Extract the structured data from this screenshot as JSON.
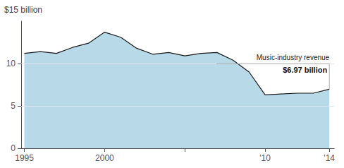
{
  "chart_data": {
    "type": "area",
    "x": [
      1995,
      1996,
      1997,
      1998,
      1999,
      2000,
      2001,
      2002,
      2003,
      2004,
      2005,
      2006,
      2007,
      2008,
      2009,
      2010,
      2011,
      2012,
      2013,
      2014
    ],
    "values": [
      11.2,
      11.4,
      11.2,
      11.9,
      12.4,
      13.7,
      13.1,
      11.8,
      11.1,
      11.3,
      10.9,
      11.2,
      11.3,
      10.4,
      9.0,
      6.3,
      6.4,
      6.5,
      6.5,
      6.97
    ],
    "color": "#b8d9e8",
    "ylabel": "$15 billion",
    "xlim": [
      1994.8,
      2014.3
    ],
    "ylim": [
      0,
      15
    ],
    "xticks": [
      1995,
      2000,
      {
        "value": 2005,
        "label": null
      },
      {
        "value": 2010,
        "label": "'10"
      },
      {
        "value": 2014,
        "label": "'14"
      }
    ],
    "yticks": [
      0,
      5,
      10
    ],
    "grid": true,
    "annotations": [
      {
        "text": "Music-industry revenue"
      },
      {
        "text": "$6.97 billion",
        "x": 2014,
        "y": 6.97
      }
    ]
  }
}
